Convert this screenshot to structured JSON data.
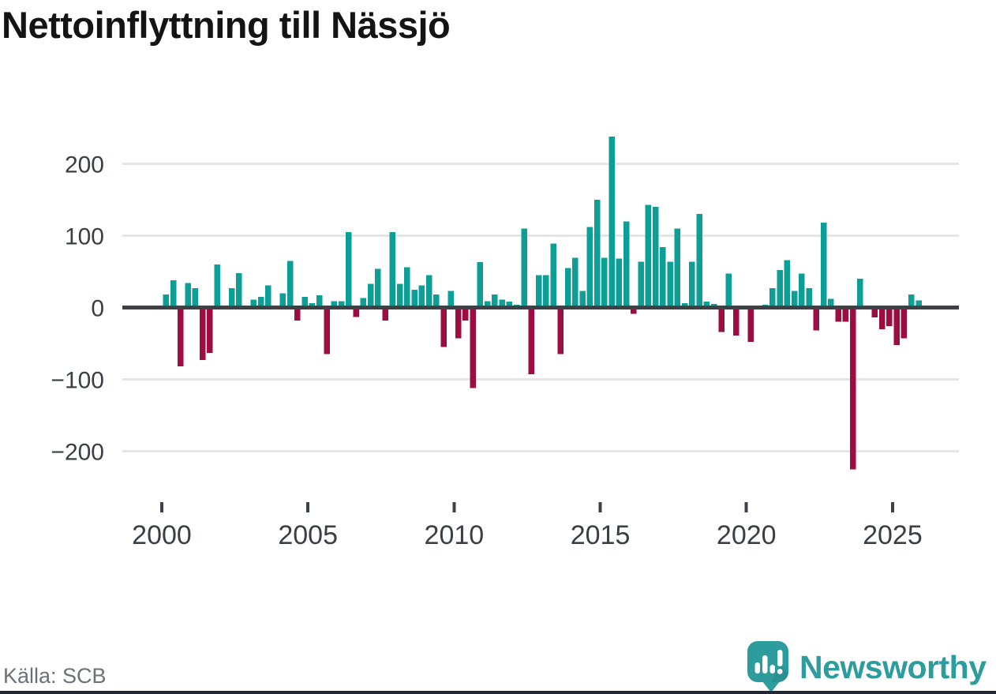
{
  "title": "Nettoinflyttning till Nässjö",
  "source": {
    "label": "Källa: SCB"
  },
  "branding": {
    "name": "Newsworthy",
    "accent": "#2D9C9C"
  },
  "colors": {
    "positive_bar": "#0D9E96",
    "negative_bar": "#9D0D42",
    "zero_line": "#3D4146",
    "gridline": "#E5E5E7",
    "axis_text": "#3A3F45",
    "title_text": "#141414",
    "source_text": "#6C7077"
  },
  "chart_data": {
    "type": "bar",
    "title": "Nettoinflyttning till Nässjö",
    "frequency": "quarterly",
    "start": "2000-Q1",
    "end": "2025-Q4",
    "xlabel": "",
    "ylabel": "",
    "ylim": [
      -240,
      250
    ],
    "grid": true,
    "legend": false,
    "x_ticks": [
      "2000",
      "2005",
      "2010",
      "2015",
      "2020",
      "2025"
    ],
    "y_ticks": [
      {
        "label": "200",
        "value": 200
      },
      {
        "label": "100",
        "value": 100
      },
      {
        "label": "0",
        "value": 0
      },
      {
        "label": "−100",
        "value": -100
      },
      {
        "label": "−200",
        "value": -200
      }
    ],
    "values": [
      18,
      38,
      -82,
      34,
      27,
      -73,
      -63,
      60,
      0,
      27,
      48,
      0,
      11,
      15,
      31,
      0,
      20,
      65,
      -18,
      15,
      6,
      17,
      -65,
      9,
      9,
      105,
      -13,
      13,
      33,
      54,
      -18,
      105,
      33,
      56,
      25,
      31,
      45,
      18,
      -55,
      23,
      -43,
      -18,
      -112,
      63,
      9,
      18,
      11,
      8,
      4,
      110,
      -93,
      45,
      45,
      89,
      -65,
      55,
      69,
      23,
      112,
      150,
      69,
      238,
      68,
      120,
      -9,
      64,
      143,
      140,
      84,
      64,
      110,
      6,
      64,
      130,
      8,
      5,
      -34,
      47,
      -39,
      0,
      -48,
      0,
      4,
      27,
      52,
      66,
      23,
      47,
      27,
      -32,
      118,
      12,
      -20,
      -20,
      -225,
      40,
      3,
      -14,
      -30,
      -26,
      -52,
      -43,
      18,
      10
    ]
  }
}
